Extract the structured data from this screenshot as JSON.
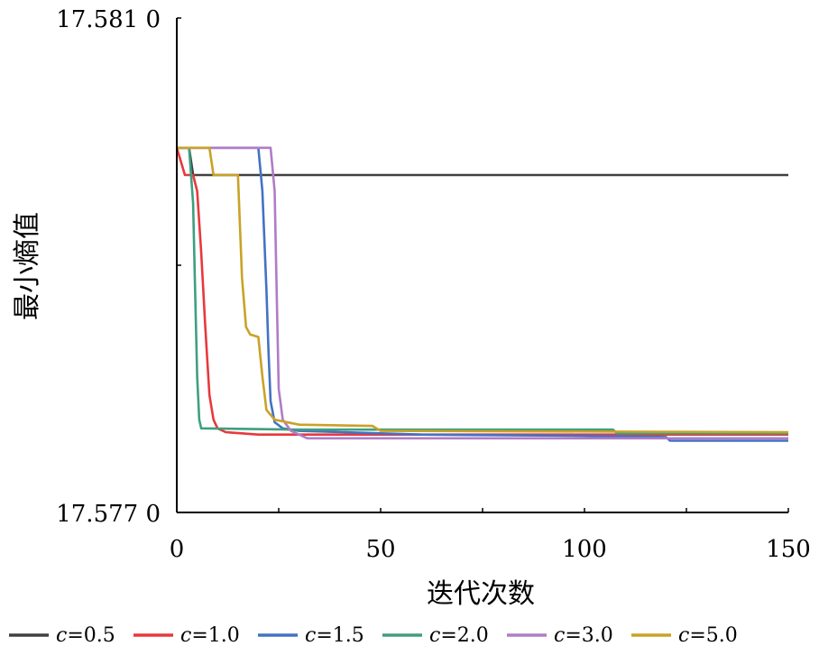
{
  "chart_data": {
    "type": "line",
    "title": "",
    "xlabel": "迭代次数",
    "ylabel": "最小熵值",
    "xlim": [
      0,
      150
    ],
    "ylim": [
      17.577,
      17.581
    ],
    "x_ticks": [
      "0",
      "50",
      "100",
      "150"
    ],
    "y_ticks": [
      "17.581 0",
      "17.577 0"
    ],
    "grid": false,
    "legend_position": "bottom",
    "series": [
      {
        "name": "c=0.5",
        "var": "c",
        "value": "=0.5",
        "color": "#404040",
        "points": [
          [
            0,
            17.57995
          ],
          [
            3,
            17.57995
          ],
          [
            4,
            17.57973
          ],
          [
            150,
            17.57973
          ]
        ]
      },
      {
        "name": "c=1.0",
        "var": "c",
        "value": "=1.0",
        "color": "#e8383d",
        "points": [
          [
            0,
            17.57995
          ],
          [
            2,
            17.57973
          ],
          [
            4,
            17.57973
          ],
          [
            5,
            17.5796
          ],
          [
            6,
            17.5791
          ],
          [
            7,
            17.5785
          ],
          [
            8,
            17.57795
          ],
          [
            9,
            17.57775
          ],
          [
            10,
            17.57768
          ],
          [
            12,
            17.57765
          ],
          [
            20,
            17.57763
          ],
          [
            150,
            17.57763
          ]
        ]
      },
      {
        "name": "c=1.5",
        "var": "c",
        "value": "=1.5",
        "color": "#4472c4",
        "points": [
          [
            0,
            17.57995
          ],
          [
            20,
            17.57995
          ],
          [
            21,
            17.5796
          ],
          [
            22,
            17.5788
          ],
          [
            22.5,
            17.5783
          ],
          [
            23,
            17.5779
          ],
          [
            24,
            17.57773
          ],
          [
            26,
            17.57768
          ],
          [
            30,
            17.57766
          ],
          [
            60,
            17.57763
          ],
          [
            100,
            17.57762
          ],
          [
            120,
            17.57761
          ],
          [
            121,
            17.57758
          ],
          [
            150,
            17.57758
          ]
        ]
      },
      {
        "name": "c=2.0",
        "var": "c",
        "value": "=2.0",
        "color": "#3f9f7f",
        "points": [
          [
            0,
            17.57995
          ],
          [
            3,
            17.57995
          ],
          [
            4,
            17.5795
          ],
          [
            4.5,
            17.5788
          ],
          [
            5,
            17.5781
          ],
          [
            5.5,
            17.57775
          ],
          [
            6,
            17.57768
          ],
          [
            30,
            17.57767
          ],
          [
            107,
            17.57767
          ],
          [
            108,
            17.57764
          ],
          [
            150,
            17.57764
          ]
        ]
      },
      {
        "name": "c=3.0",
        "var": "c",
        "value": "=3.0",
        "color": "#b07cc6",
        "points": [
          [
            0,
            17.57995
          ],
          [
            23,
            17.57995
          ],
          [
            24,
            17.5796
          ],
          [
            24.5,
            17.5788
          ],
          [
            25,
            17.578
          ],
          [
            26,
            17.57775
          ],
          [
            28,
            17.57766
          ],
          [
            32,
            17.5776
          ],
          [
            80,
            17.5776
          ],
          [
            150,
            17.5776
          ]
        ]
      },
      {
        "name": "c=5.0",
        "var": "c",
        "value": "=5.0",
        "color": "#c9a227",
        "points": [
          [
            0,
            17.57995
          ],
          [
            8,
            17.57995
          ],
          [
            9,
            17.57973
          ],
          [
            15,
            17.57973
          ],
          [
            16,
            17.5789
          ],
          [
            17,
            17.5785
          ],
          [
            18,
            17.57844
          ],
          [
            20,
            17.57842
          ],
          [
            21,
            17.5781
          ],
          [
            22,
            17.57783
          ],
          [
            24,
            17.57775
          ],
          [
            30,
            17.57771
          ],
          [
            48,
            17.5777
          ],
          [
            50,
            17.57766
          ],
          [
            150,
            17.57765
          ]
        ]
      }
    ]
  }
}
